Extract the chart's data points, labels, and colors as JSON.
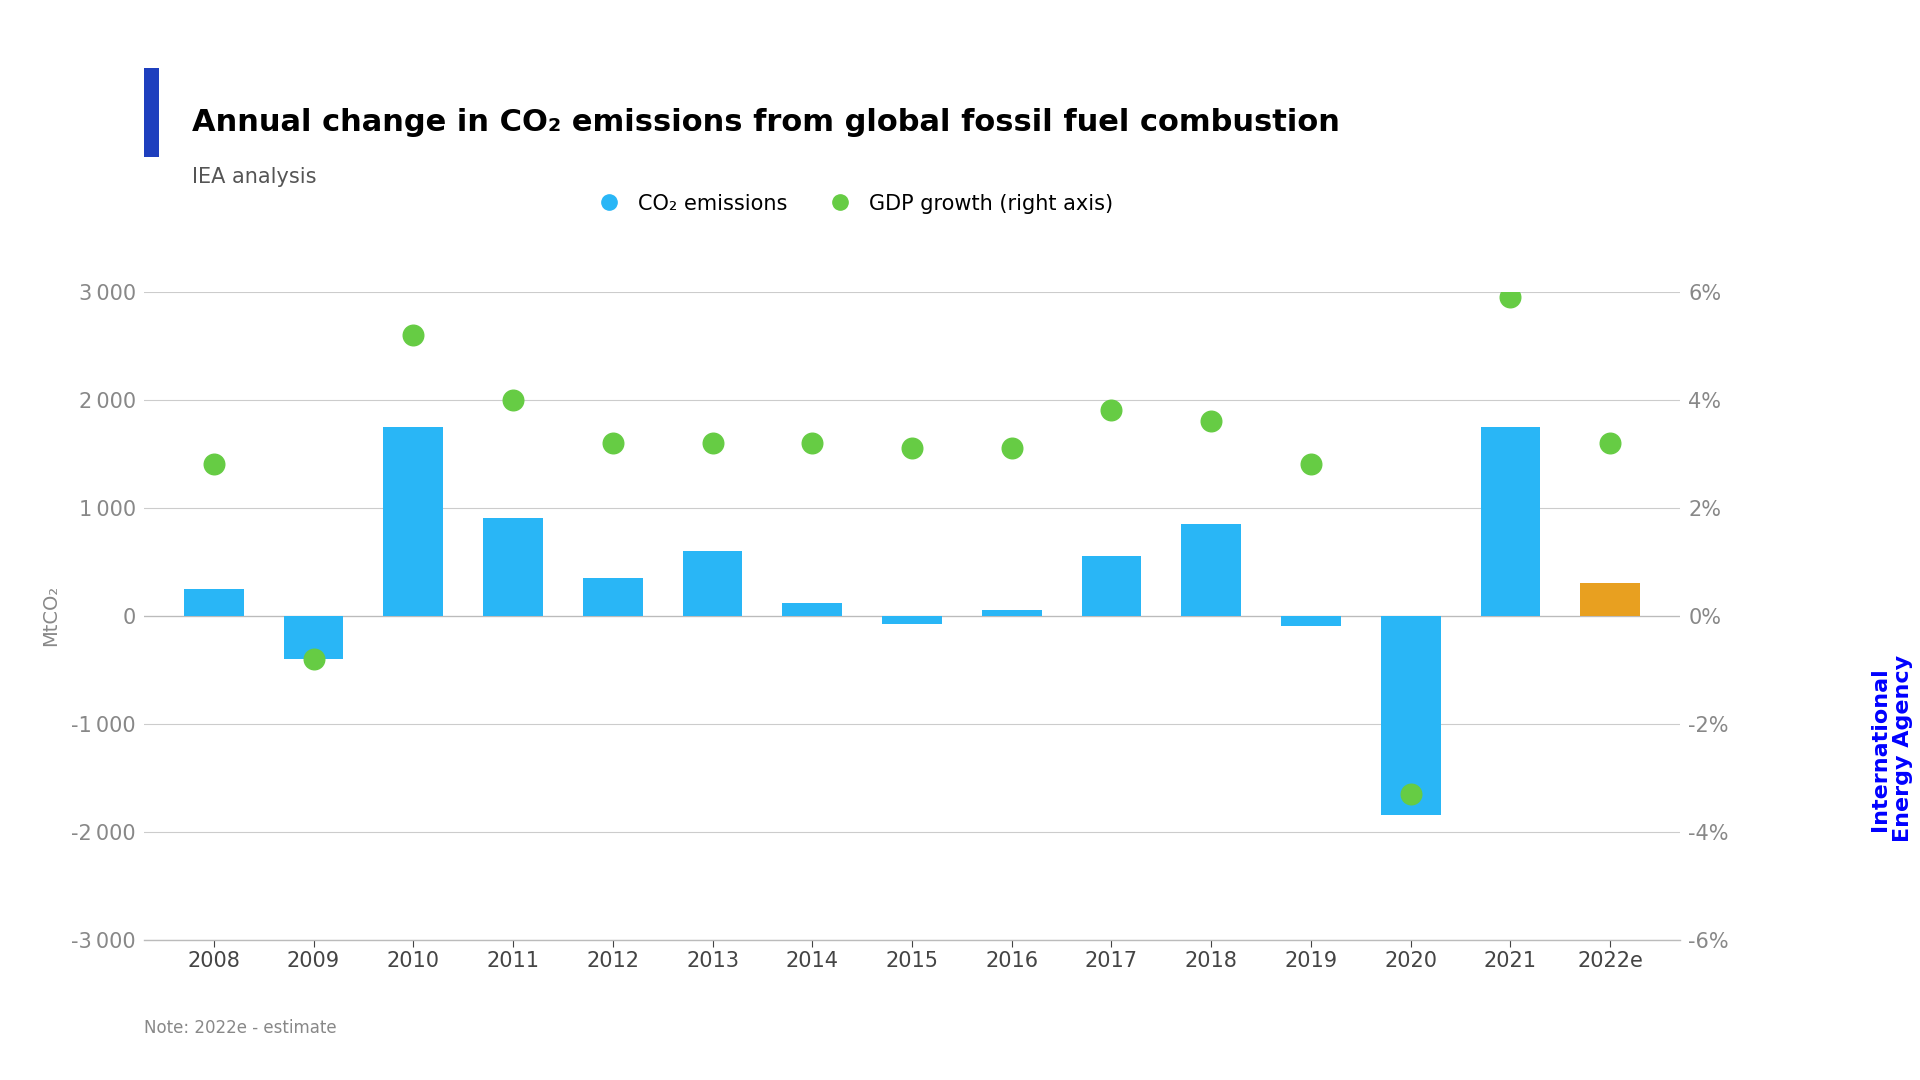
{
  "years": [
    "2008",
    "2009",
    "2010",
    "2011",
    "2012",
    "2013",
    "2014",
    "2015",
    "2016",
    "2017",
    "2018",
    "2019",
    "2020",
    "2021",
    "2022e"
  ],
  "co2_values": [
    250,
    -400,
    1750,
    900,
    350,
    600,
    120,
    -75,
    50,
    550,
    850,
    -100,
    -1850,
    1750,
    300
  ],
  "bar_colors": [
    "#29B6F6",
    "#29B6F6",
    "#29B6F6",
    "#29B6F6",
    "#29B6F6",
    "#29B6F6",
    "#29B6F6",
    "#29B6F6",
    "#29B6F6",
    "#29B6F6",
    "#29B6F6",
    "#29B6F6",
    "#29B6F6",
    "#29B6F6",
    "#E8A020"
  ],
  "gdp_values": [
    2.8,
    -0.8,
    5.2,
    4.0,
    3.2,
    3.2,
    3.2,
    3.1,
    3.1,
    3.8,
    3.6,
    2.8,
    -3.3,
    5.9,
    3.2
  ],
  "gdp_color": "#66CC44",
  "bar_color_main": "#29B6F6",
  "bar_color_estimate": "#E8A020",
  "title_line1": "Annual change in CO",
  "title_co2_sub": "2",
  "title_line1_end": " emissions from global fossil fuel combustion",
  "subtitle": "IEA analysis",
  "ylabel_left": "MtCO₂",
  "ylim_left": [
    -3000,
    3000
  ],
  "ylim_right": [
    -6,
    6
  ],
  "yticks_left": [
    -3000,
    -2000,
    -1000,
    0,
    1000,
    2000,
    3000
  ],
  "yticks_right": [
    -6,
    -4,
    -2,
    0,
    2,
    4,
    6
  ],
  "background_color": "#FFFFFF",
  "grid_color": "#CCCCCC",
  "title_color": "#000000",
  "subtitle_color": "#555555",
  "legend_co2_label": "CO₂ emissions",
  "legend_gdp_label": "GDP growth (right axis)",
  "note": "Note: 2022e - estimate",
  "blue_bar_color": "#29B6F6",
  "iea_text_color": "#0000FF",
  "title_bar_color": "#1E3FBE",
  "iea_line1": "International",
  "iea_line2": "Energy Agency"
}
